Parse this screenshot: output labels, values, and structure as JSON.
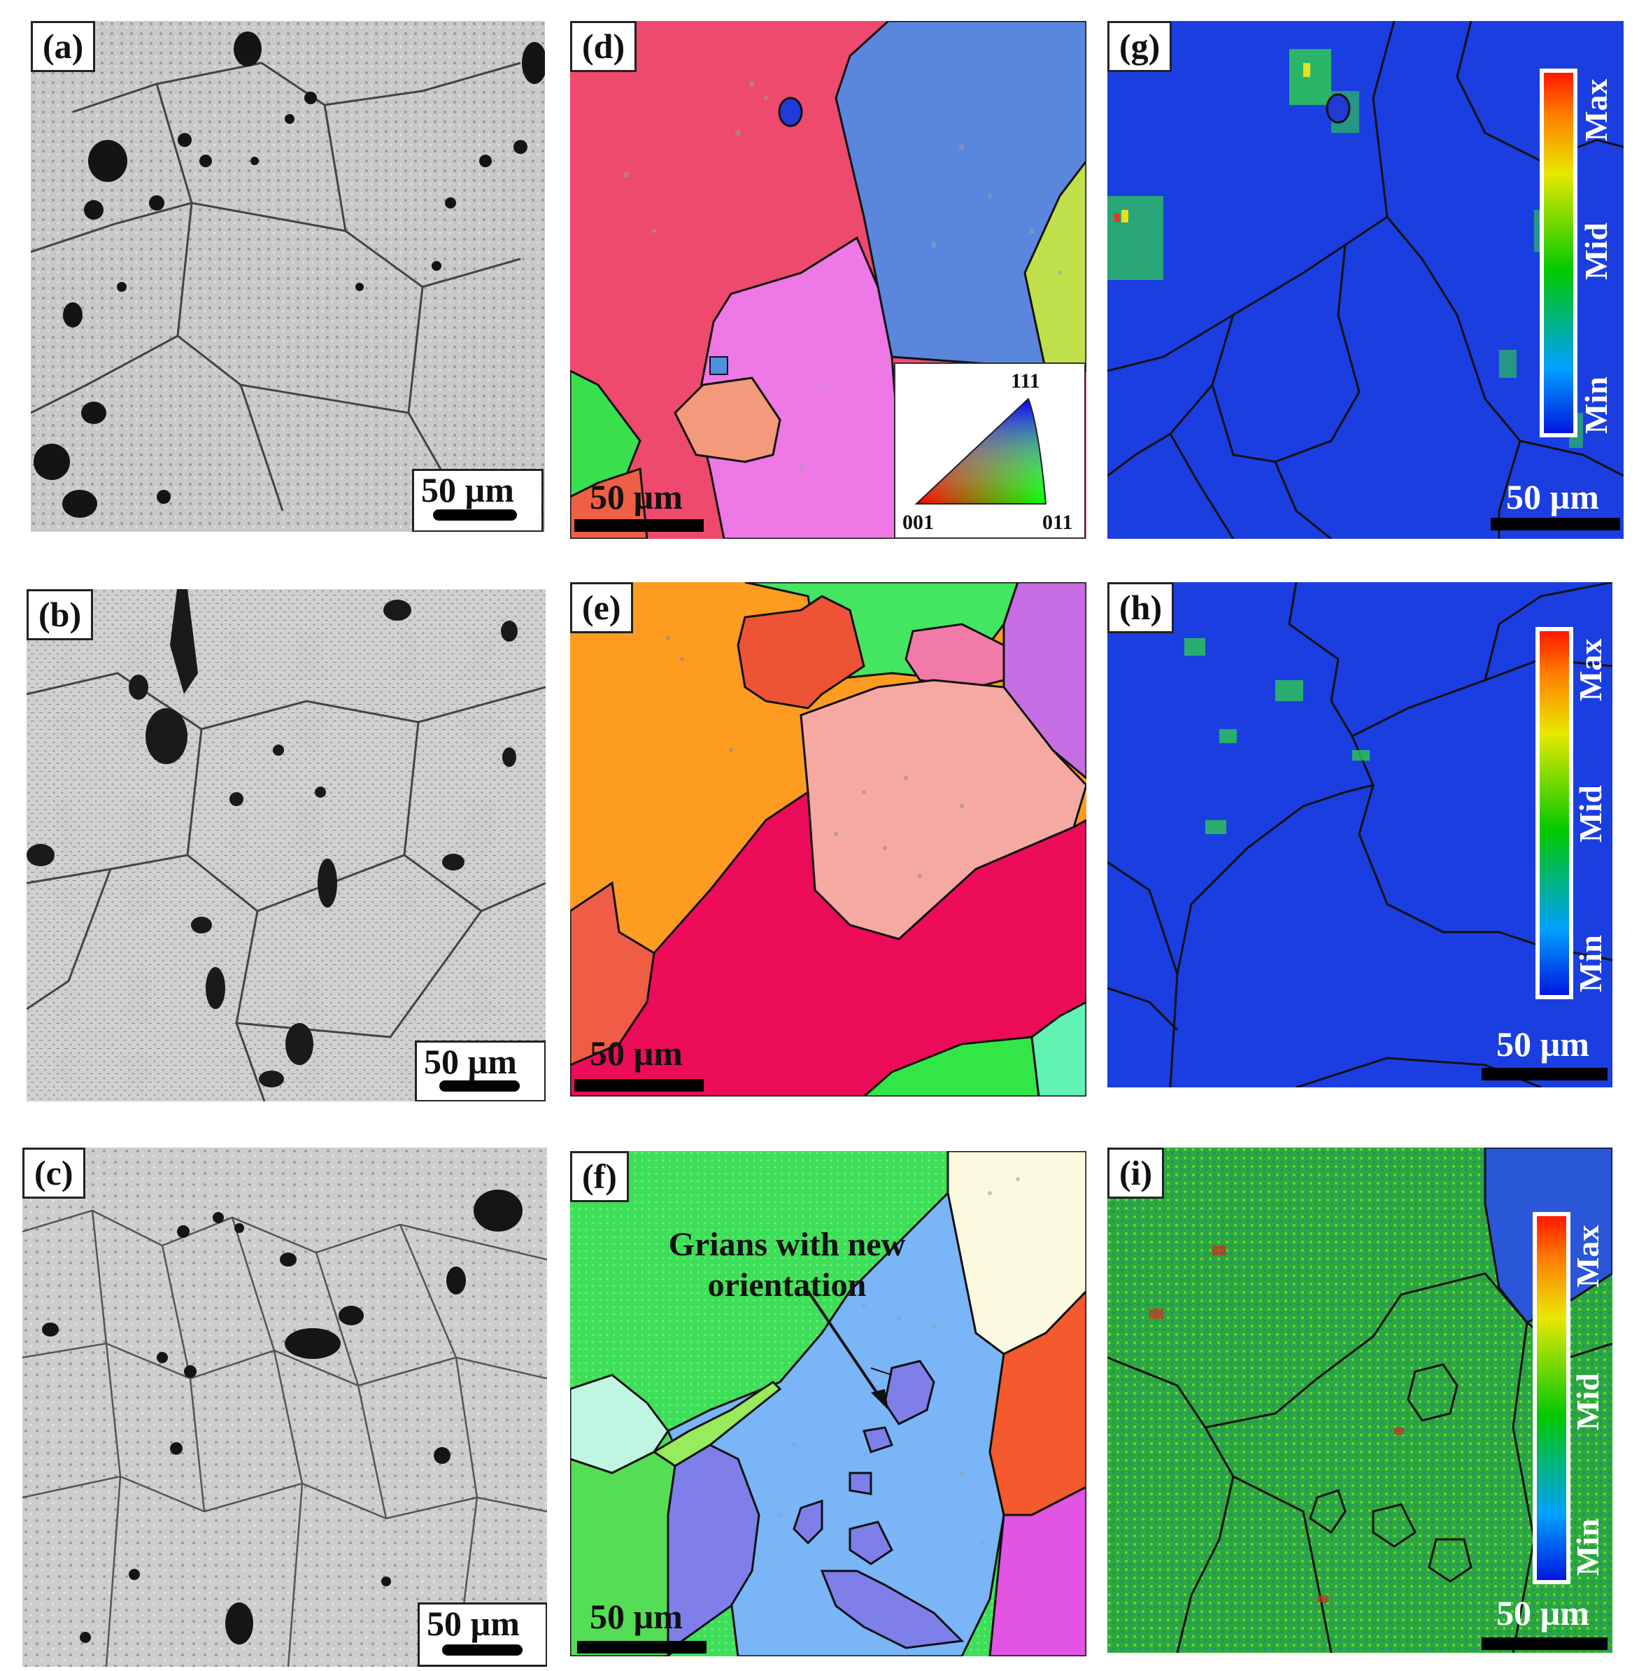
{
  "panels": [
    {
      "label": "(a)",
      "scale_bar": "50 µm"
    },
    {
      "label": "(b)",
      "scale_bar": "50 µm"
    },
    {
      "label": "(c)",
      "scale_bar": "50 µm"
    },
    {
      "label": "(d)",
      "scale_bar": "50 µm"
    },
    {
      "label": "(e)",
      "scale_bar": "50 µm"
    },
    {
      "label": "(f)",
      "scale_bar": "50 µm",
      "annotation_line1": "Grians with new",
      "annotation_line2": "orientation"
    },
    {
      "label": "(g)",
      "scale_bar": "50 µm"
    },
    {
      "label": "(h)",
      "scale_bar": "50 µm"
    },
    {
      "label": "(i)",
      "scale_bar": "50 µm"
    }
  ],
  "ipf_key": {
    "top": "111",
    "left": "001",
    "right": "011"
  },
  "colorbar": {
    "max": "Max",
    "mid": "Mid",
    "min": "Min"
  },
  "colors": {
    "kam_background": "#1a3ee0",
    "kam_background_i": "#2aa83a",
    "boundary": "#111111"
  }
}
